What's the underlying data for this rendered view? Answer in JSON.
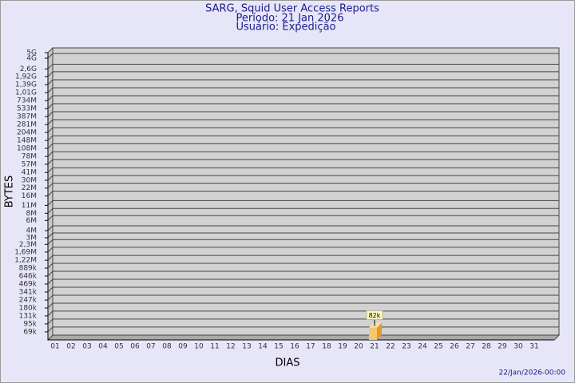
{
  "chart_data": {
    "type": "bar",
    "title": "SARG, Squid User Access Reports",
    "subtitle": "Período: 21 Jan 2026",
    "subtitle2": "Usuário: Expedição",
    "x_label": "DIAS",
    "y_label": "BYTES",
    "footer": "22/Jan/2026-00:00",
    "categories": [
      "01",
      "02",
      "03",
      "04",
      "05",
      "06",
      "07",
      "08",
      "09",
      "10",
      "11",
      "12",
      "13",
      "14",
      "15",
      "16",
      "17",
      "18",
      "19",
      "20",
      "21",
      "22",
      "23",
      "24",
      "25",
      "26",
      "27",
      "28",
      "29",
      "30",
      "31"
    ],
    "values": [
      null,
      null,
      null,
      null,
      null,
      null,
      null,
      null,
      null,
      null,
      null,
      null,
      null,
      null,
      null,
      null,
      null,
      null,
      null,
      null,
      82000,
      null,
      null,
      null,
      null,
      null,
      null,
      null,
      null,
      null,
      null
    ],
    "value_labels": [
      null,
      null,
      null,
      null,
      null,
      null,
      null,
      null,
      null,
      null,
      null,
      null,
      null,
      null,
      null,
      null,
      null,
      null,
      null,
      null,
      "82k",
      null,
      null,
      null,
      null,
      null,
      null,
      null,
      null,
      null,
      null
    ],
    "color": "#f7c56a",
    "log_scale": true,
    "grid": true,
    "ylim": [
      50000,
      5000000000
    ],
    "yticks": [
      {
        "value": 69000,
        "label": "69k"
      },
      {
        "value": 95000,
        "label": "95k"
      },
      {
        "value": 131000,
        "label": "131k"
      },
      {
        "value": 180000,
        "label": "180k"
      },
      {
        "value": 247000,
        "label": "247k"
      },
      {
        "value": 341000,
        "label": "341k"
      },
      {
        "value": 469000,
        "label": "469k"
      },
      {
        "value": 646000,
        "label": "646k"
      },
      {
        "value": 889000,
        "label": "889k"
      },
      {
        "value": 1220000,
        "label": "1,22M"
      },
      {
        "value": 1690000,
        "label": "1,69M"
      },
      {
        "value": 2300000,
        "label": "2,3M"
      },
      {
        "value": 3000000,
        "label": "3M"
      },
      {
        "value": 4000000,
        "label": "4M"
      },
      {
        "value": 6000000,
        "label": "6M"
      },
      {
        "value": 8000000,
        "label": "8M"
      },
      {
        "value": 11000000,
        "label": "11M"
      },
      {
        "value": 16000000,
        "label": "16M"
      },
      {
        "value": 22000000,
        "label": "22M"
      },
      {
        "value": 30000000,
        "label": "30M"
      },
      {
        "value": 41000000,
        "label": "41M"
      },
      {
        "value": 57000000,
        "label": "57M"
      },
      {
        "value": 78000000,
        "label": "78M"
      },
      {
        "value": 108000000,
        "label": "108M"
      },
      {
        "value": 148000000,
        "label": "148M"
      },
      {
        "value": 204000000,
        "label": "204M"
      },
      {
        "value": 281000000,
        "label": "281M"
      },
      {
        "value": 387000000,
        "label": "387M"
      },
      {
        "value": 533000000,
        "label": "533M"
      },
      {
        "value": 734000000,
        "label": "734M"
      },
      {
        "value": 1010000000,
        "label": "1,01G"
      },
      {
        "value": 1390000000,
        "label": "1,39G"
      },
      {
        "value": 1920000000,
        "label": "1,92G"
      },
      {
        "value": 2600000000,
        "label": "2,6G"
      },
      {
        "value": 4000000000,
        "label": "4G"
      },
      {
        "value": 5000000000,
        "label": "5G"
      }
    ]
  }
}
